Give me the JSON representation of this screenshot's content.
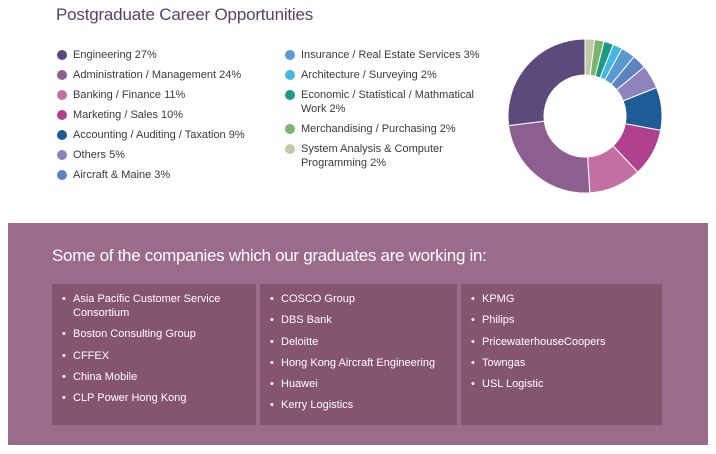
{
  "page": {
    "title": "Postgraduate Career Opportunities",
    "companies_heading": "Some of the companies which our graduates are working in:"
  },
  "chart_data": {
    "type": "pie",
    "title": "Postgraduate Career Opportunities",
    "categories": [
      "Engineering 27%",
      "Administration / Management 24%",
      "Banking / Finance 11%",
      "Marketing / Sales 10%",
      "Accounting / Auditing / Taxation 9%",
      "Others 5%",
      "Aircraft & Maine 3%",
      "Insurance / Real Estate Services 3%",
      "Architecture / Surveying 2%",
      "Economic / Statistical / Mathmatical Work 2%",
      "Merchandising / Purchasing 2%",
      "System Analysis & Computer Programming 2%"
    ],
    "values": [
      27,
      24,
      11,
      10,
      9,
      5,
      3,
      3,
      2,
      2,
      2,
      2
    ],
    "colors": [
      "#5c4a7c",
      "#8d5f90",
      "#c46fa4",
      "#b0418e",
      "#1e5c97",
      "#8e84bb",
      "#5d84bf",
      "#5b9ad1",
      "#45b7e3",
      "#1e9a83",
      "#7cb46b",
      "#bfc9a8"
    ],
    "legend_columns": [
      7,
      5
    ],
    "style": "donut"
  },
  "companies": [
    [
      "Asia Pacific Customer Service Consortium",
      "Boston Consulting Group",
      "CFFEX",
      "China Mobile",
      "CLP Power Hong Kong"
    ],
    [
      "COSCO Group",
      "DBS Bank",
      "Deloitte",
      "Hong Kong Aircraft Engineering",
      "Huawei",
      "Kerry Logistics"
    ],
    [
      "KPMG",
      "Philips",
      "PricewaterhouseCoopers",
      "Towngas",
      "USL Logistic"
    ]
  ],
  "bullet": "•"
}
